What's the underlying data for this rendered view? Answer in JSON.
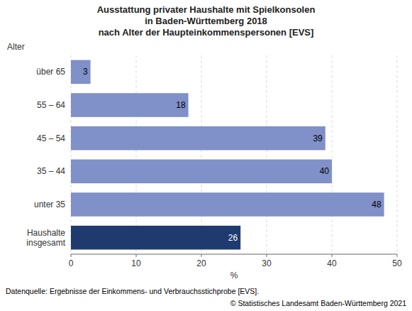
{
  "chart_data": {
    "type": "bar",
    "orientation": "horizontal",
    "title": "Ausstattung privater Haushalte mit Spielkonsolen\nin Baden-Württemberg 2018\nnach Alter der Haupteinkommenspersonen  [EVS]",
    "categories": [
      "über 65",
      "55 – 64",
      "45 – 54",
      "35 – 44",
      "unter 35",
      "Haushalte\ninsgesamt"
    ],
    "values": [
      3,
      18,
      39,
      40,
      48,
      26
    ],
    "colors": [
      "#8090c8",
      "#8090c8",
      "#8090c8",
      "#8090c8",
      "#8090c8",
      "#1f3a6e"
    ],
    "xlabel": "%",
    "ylabel": "Alter",
    "xlim": [
      0,
      50
    ],
    "xticks": [
      0,
      10,
      20,
      30,
      40,
      50
    ],
    "grid": true,
    "data_labels": true,
    "annotations": [
      "Datenquelle: Ergebnisse der Einkommens- und Verbrauchsstichprobe [EVS].",
      "© Statistisches Landesamt Baden-Württemberg 2021"
    ]
  }
}
